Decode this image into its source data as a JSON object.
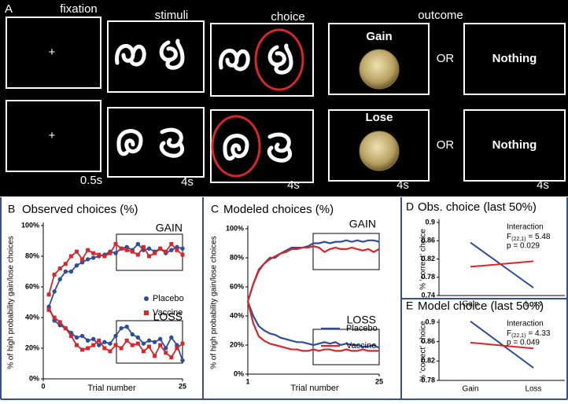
{
  "task": {
    "panel": "A",
    "columns": [
      "fixation",
      "stimuli",
      "choice",
      "outcome"
    ],
    "fixation_symbol": [
      "+",
      "+"
    ],
    "outcome_labels": [
      "Gain",
      "Lose"
    ],
    "or": [
      "OR",
      "OR"
    ],
    "nothing": [
      "Nothing",
      "Nothing"
    ],
    "durations": [
      "0.5s",
      "4s",
      "4s",
      "4s",
      "4s"
    ]
  },
  "chart_data": [
    {
      "type": "line",
      "panel": "B",
      "title": "Observed choices (%)",
      "xlabel": "Trial number",
      "ylabel": "% of high probability gain/lose choices",
      "markers": true,
      "legend": "center-right",
      "groups": [
        "GAIN",
        "LOSS"
      ],
      "x": [
        1,
        2,
        3,
        4,
        5,
        6,
        7,
        8,
        9,
        10,
        11,
        12,
        13,
        14,
        15,
        16,
        17,
        18,
        19,
        20,
        21,
        22,
        23,
        24,
        25
      ],
      "xlim": [
        0,
        25
      ],
      "xticks": [
        0,
        25
      ],
      "ylim": [
        0,
        100
      ],
      "yticks": [
        {
          "value": 0,
          "label": "0%"
        },
        {
          "value": 20,
          "label": "20%"
        },
        {
          "value": 40,
          "label": "40%"
        },
        {
          "value": 60,
          "label": "60%"
        },
        {
          "value": 80,
          "label": "80%"
        },
        {
          "value": 100,
          "label": "100%"
        }
      ],
      "series": [
        {
          "name": "Placebo",
          "color": "#2e4d9a",
          "marker": "circle",
          "values": [
            [
              47,
              57,
              65,
              70,
              70,
              74,
              76,
              78,
              79,
              80,
              81,
              83,
              82,
              85,
              86,
              84,
              88,
              84,
              85,
              83,
              85,
              82,
              84,
              86,
              85
            ],
            [
              47,
              38,
              35,
              33,
              30,
              27,
              28,
              25,
              26,
              22,
              24,
              23,
              28,
              33,
              34,
              29,
              27,
              23,
              25,
              24,
              26,
              20,
              27,
              22,
              12
            ]
          ]
        },
        {
          "name": "Vaccine",
          "color": "#d8262a",
          "marker": "square",
          "values": [
            [
              55,
              68,
              72,
              75,
              80,
              83,
              78,
              84,
              82,
              81,
              80,
              82,
              88,
              85,
              84,
              83,
              81,
              86,
              80,
              82,
              85,
              83,
              88,
              84,
              81
            ],
            [
              45,
              40,
              37,
              33,
              28,
              22,
              19,
              20,
              22,
              25,
              20,
              18,
              22,
              20,
              25,
              22,
              23,
              18,
              21,
              15,
              22,
              17,
              14,
              20,
              23
            ]
          ]
        }
      ]
    },
    {
      "type": "line",
      "panel": "C",
      "title": "Modeled choices (%)",
      "xlabel": "Trial number",
      "ylabel": "% of high probability gain/lose choices",
      "markers": false,
      "legend": "center-right",
      "groups": [
        "GAIN",
        "LOSS"
      ],
      "x": [
        1,
        2,
        3,
        4,
        5,
        6,
        7,
        8,
        9,
        10,
        11,
        12,
        13,
        14,
        15,
        16,
        17,
        18,
        19,
        20,
        21,
        22,
        23,
        24,
        25
      ],
      "xlim": [
        1,
        25
      ],
      "xticks": [
        1,
        25
      ],
      "ylim": [
        0,
        100
      ],
      "yticks": [
        {
          "value": 0,
          "label": "0%"
        },
        {
          "value": 20,
          "label": "20%"
        },
        {
          "value": 40,
          "label": "40%"
        },
        {
          "value": 60,
          "label": "60%"
        },
        {
          "value": 80,
          "label": "80%"
        },
        {
          "value": 100,
          "label": "100%"
        }
      ],
      "series": [
        {
          "name": "Placebo",
          "color": "#2e4d9a",
          "values": [
            [
              50,
              62,
              72,
              76,
              80,
              80,
              83,
              85,
              87,
              87,
              87,
              88,
              90,
              90,
              91,
              90,
              91,
              91,
              92,
              91,
              92,
              91,
              92,
              92,
              91
            ],
            [
              50,
              40,
              33,
              30,
              28,
              27,
              25,
              24,
              23,
              22,
              22,
              21,
              20,
              21,
              22,
              21,
              22,
              20,
              21,
              20,
              20,
              19,
              19,
              20,
              18
            ]
          ]
        },
        {
          "name": "Vaccine",
          "color": "#d8262a",
          "values": [
            [
              50,
              62,
              71,
              76,
              79,
              81,
              83,
              84,
              86,
              86,
              87,
              87,
              88,
              87,
              84,
              86,
              87,
              86,
              86,
              87,
              86,
              85,
              86,
              84,
              86
            ],
            [
              50,
              35,
              26,
              23,
              21,
              20,
              19,
              18,
              17,
              17,
              16,
              16,
              17,
              16,
              17,
              17,
              16,
              16,
              17,
              16,
              16,
              17,
              16,
              16,
              16
            ]
          ]
        }
      ]
    },
    {
      "type": "interaction",
      "panel": "D",
      "title": "Obs. choice (last 50%)",
      "ylabel": "% 'correct' choice",
      "categories": [
        "Gain",
        "Loss"
      ],
      "ylim": [
        0.74,
        0.9
      ],
      "yticks": [
        0.74,
        0.78,
        0.82,
        0.86,
        0.9
      ],
      "annotation": "Interaction",
      "stat_f": "F",
      "stat_df": "(22,1)",
      "stat_value": "= 5.48",
      "p_value": "p = 0.029",
      "series": [
        {
          "name": "Placebo",
          "color": "#2e4d9a",
          "values": [
            0.856,
            0.757
          ]
        },
        {
          "name": "Vaccine",
          "color": "#d8262a",
          "values": [
            0.803,
            0.815
          ]
        }
      ]
    },
    {
      "type": "interaction",
      "panel": "E",
      "title": "Model choice (last 50%)",
      "ylabel": "% 'correct' choice",
      "categories": [
        "Gain",
        "Loss"
      ],
      "ylim": [
        0.78,
        0.9
      ],
      "yticks": [
        0.78,
        0.82,
        0.86,
        0.9
      ],
      "annotation": "Interaction",
      "stat_f": "F",
      "stat_df": "(22,1)",
      "stat_value": "= 4.33",
      "p_value": "p = 0.049",
      "series": [
        {
          "name": "Placebo",
          "color": "#2e4d9a",
          "values": [
            0.902,
            0.806
          ]
        },
        {
          "name": "Vaccine",
          "color": "#d8262a",
          "values": [
            0.858,
            0.846
          ]
        }
      ]
    }
  ]
}
